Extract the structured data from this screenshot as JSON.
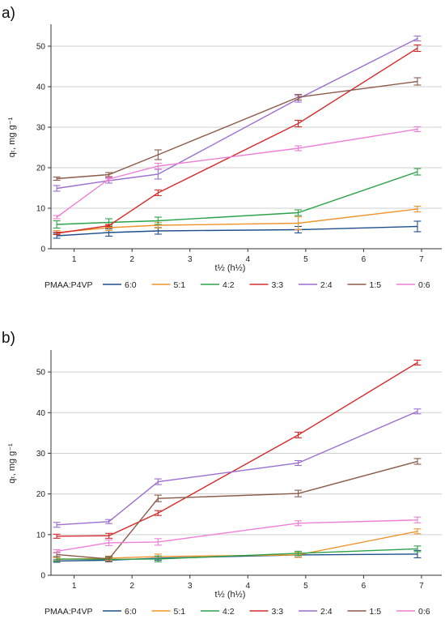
{
  "legend_title": "PMAA:P4VP",
  "series_colors": [
    "#1f4e8c",
    "#f0932b",
    "#2ca24a",
    "#d62b2b",
    "#9a6fd0",
    "#8b5a48",
    "#ee7fd6"
  ],
  "chart_data": [
    {
      "panel_label": "a)",
      "type": "line",
      "xlabel": "t½ (h½)",
      "ylabel": "qₜ, mg g⁻¹",
      "xlim": [
        0.6,
        7.35
      ],
      "ylim": [
        0,
        55
      ],
      "xticks": [
        1,
        2,
        3,
        4,
        5,
        6,
        7
      ],
      "yticks": [
        0,
        10,
        20,
        30,
        40,
        50
      ],
      "grid": true,
      "legend_position": "bottom",
      "x": [
        0.7,
        1.6,
        2.45,
        4.87,
        6.93
      ],
      "series": [
        {
          "name": "6:0",
          "values": [
            3.2,
            4.0,
            4.4,
            4.7,
            5.5
          ],
          "err": [
            0.6,
            0.9,
            0.8,
            0.8,
            1.3
          ]
        },
        {
          "name": "5:1",
          "values": [
            4.0,
            5.2,
            5.8,
            6.3,
            9.8
          ],
          "err": [
            0.5,
            0.7,
            0.7,
            1.6,
            0.7
          ]
        },
        {
          "name": "4:2",
          "values": [
            6.0,
            6.5,
            6.9,
            8.9,
            19.0
          ],
          "err": [
            0.9,
            0.9,
            0.9,
            0.7,
            0.8
          ]
        },
        {
          "name": "3:3",
          "values": [
            3.8,
            5.7,
            13.8,
            30.9,
            49.5
          ],
          "err": [
            0.3,
            0.3,
            0.7,
            0.8,
            0.8
          ]
        },
        {
          "name": "2:4",
          "values": [
            14.9,
            16.8,
            18.4,
            37.0,
            51.9
          ],
          "err": [
            0.7,
            0.6,
            1.2,
            0.8,
            0.6
          ]
        },
        {
          "name": "1:5",
          "values": [
            17.3,
            18.3,
            23.2,
            37.4,
            41.3
          ],
          "err": [
            0.4,
            0.5,
            1.2,
            0.7,
            0.9
          ]
        },
        {
          "name": "0:6",
          "values": [
            7.8,
            17.2,
            20.4,
            24.8,
            29.5
          ],
          "err": [
            0.4,
            0.4,
            0.7,
            0.6,
            0.6
          ]
        }
      ]
    },
    {
      "panel_label": "b)",
      "type": "line",
      "xlabel": "t½ (h½)",
      "ylabel": "qₜ, mg g⁻¹",
      "xlim": [
        0.6,
        7.35
      ],
      "ylim": [
        0,
        55
      ],
      "xticks": [
        1,
        2,
        3,
        4,
        5,
        6,
        7
      ],
      "yticks": [
        0,
        10,
        20,
        30,
        40,
        50
      ],
      "grid": true,
      "legend_position": "bottom",
      "x": [
        0.7,
        1.6,
        2.45,
        4.87,
        6.93
      ],
      "series": [
        {
          "name": "6:0",
          "values": [
            3.5,
            3.7,
            4.2,
            5.0,
            5.2
          ],
          "err": [
            0.3,
            0.4,
            0.5,
            0.5,
            0.9
          ]
        },
        {
          "name": "5:1",
          "values": [
            3.9,
            4.2,
            4.6,
            5.0,
            10.8
          ],
          "err": [
            0.4,
            0.5,
            0.6,
            0.6,
            0.6
          ]
        },
        {
          "name": "4:2",
          "values": [
            4.0,
            3.9,
            4.0,
            5.4,
            6.5
          ],
          "err": [
            0.6,
            0.5,
            0.7,
            0.5,
            0.7
          ]
        },
        {
          "name": "3:3",
          "values": [
            9.6,
            9.7,
            15.3,
            34.5,
            52.3
          ],
          "err": [
            0.5,
            0.6,
            0.6,
            0.7,
            0.6
          ]
        },
        {
          "name": "2:4",
          "values": [
            12.4,
            13.2,
            23.0,
            27.6,
            40.3
          ],
          "err": [
            0.6,
            0.5,
            0.7,
            0.6,
            0.6
          ]
        },
        {
          "name": "1:5",
          "values": [
            5.1,
            4.0,
            18.9,
            20.1,
            28.0
          ],
          "err": [
            0.5,
            0.6,
            0.8,
            0.8,
            0.7
          ]
        },
        {
          "name": "0:6",
          "values": [
            5.9,
            8.0,
            8.2,
            12.8,
            13.6
          ],
          "err": [
            0.4,
            0.7,
            0.8,
            0.6,
            0.7
          ]
        }
      ]
    }
  ]
}
